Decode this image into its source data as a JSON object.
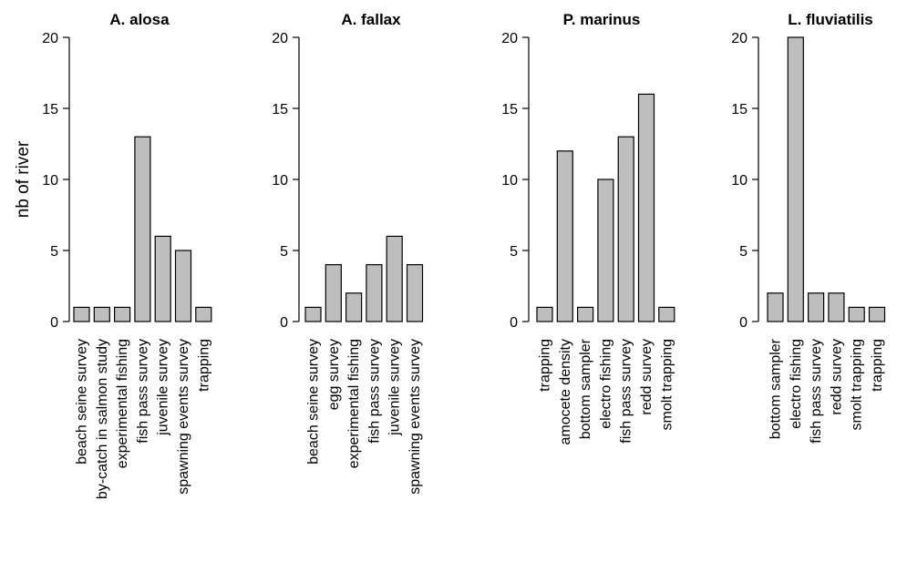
{
  "colors": {
    "bar_fill": "#bebebe",
    "bar_stroke": "#000000"
  },
  "chart_data": [
    {
      "type": "bar",
      "title": "A. alosa",
      "ylabel": "nb of river",
      "ylim": [
        0,
        20
      ],
      "yticks": [
        0,
        5,
        10,
        15,
        20
      ],
      "categories": [
        "beach seine survey",
        "by-catch in salmon study",
        "experimental fishing",
        "fish pass survey",
        "juvenile survey",
        "spawning events survey",
        "trapping"
      ],
      "values": [
        1,
        1,
        1,
        13,
        6,
        5,
        1
      ]
    },
    {
      "type": "bar",
      "title": "A. fallax",
      "ylabel": "",
      "ylim": [
        0,
        20
      ],
      "yticks": [
        0,
        5,
        10,
        15,
        20
      ],
      "categories": [
        "beach seine survey",
        "egg survey",
        "experimental fishing",
        "fish pass survey",
        "juvenile survey",
        "spawning events survey"
      ],
      "values": [
        1,
        4,
        2,
        4,
        6,
        4
      ]
    },
    {
      "type": "bar",
      "title": "P. marinus",
      "ylabel": "",
      "ylim": [
        0,
        20
      ],
      "yticks": [
        0,
        5,
        10,
        15,
        20
      ],
      "categories": [
        "trapping",
        "amocete density",
        "bottom sampler",
        "electro fishing",
        "fish pass survey",
        "redd survey",
        "smolt trapping"
      ],
      "values": [
        1,
        12,
        1,
        10,
        13,
        16,
        1
      ]
    },
    {
      "type": "bar",
      "title": "L. fluviatilis",
      "ylabel": "",
      "ylim": [
        0,
        20
      ],
      "yticks": [
        0,
        5,
        10,
        15,
        20
      ],
      "categories": [
        "bottom sampler",
        "electro fishing",
        "fish pass survey",
        "redd survey",
        "smolt trapping",
        "trapping"
      ],
      "values": [
        2,
        20,
        2,
        2,
        1,
        1
      ]
    }
  ]
}
